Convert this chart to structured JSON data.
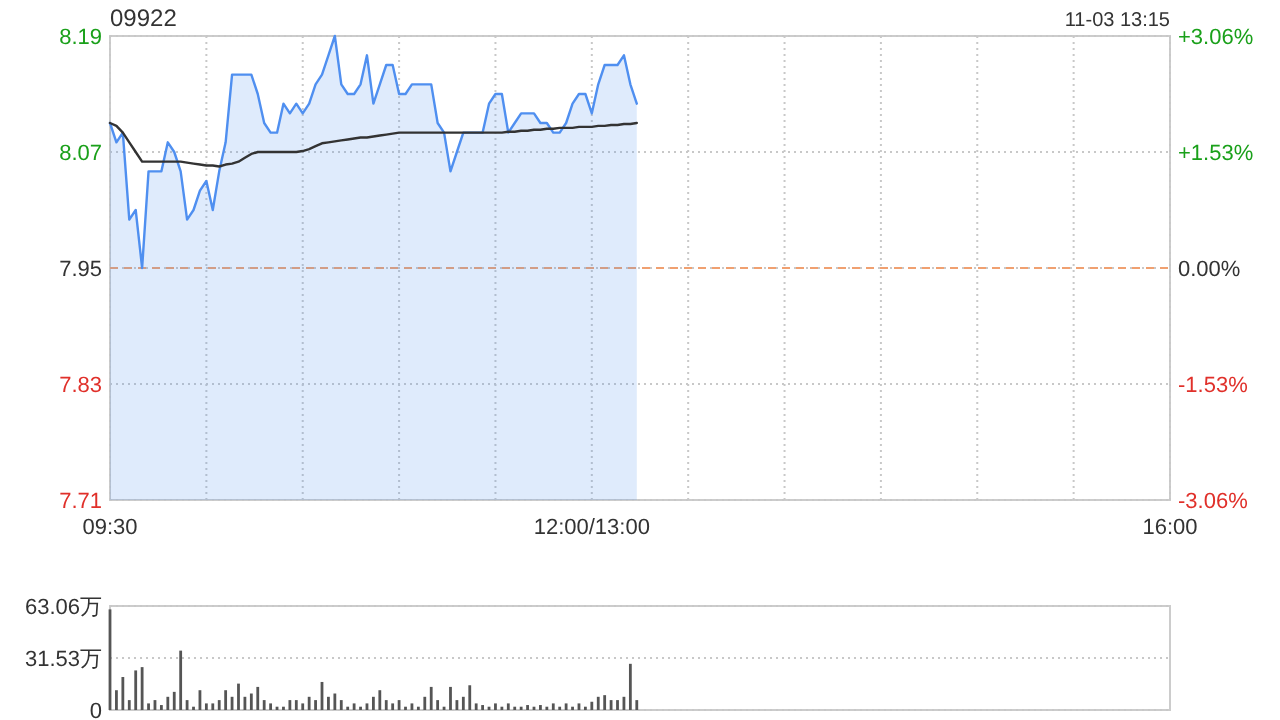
{
  "chart_data": [
    {
      "type": "line",
      "title": "09922",
      "annotations": [
        "11-03 13:15"
      ],
      "categories": [
        "09:30",
        null,
        null,
        null,
        null,
        null,
        null,
        null,
        null,
        null,
        null,
        null,
        null,
        null,
        null,
        null,
        null,
        null,
        null,
        null,
        null,
        null,
        null,
        null,
        null,
        null,
        null,
        null,
        null,
        null,
        null,
        null,
        null,
        null,
        null,
        null,
        null,
        null,
        null,
        null,
        null,
        null,
        null,
        null,
        null,
        null,
        null,
        null,
        null,
        null,
        null,
        null,
        null,
        null,
        null,
        null,
        null,
        null,
        null,
        null,
        null,
        null,
        null,
        null,
        null,
        null,
        null,
        null,
        null,
        null,
        null,
        null,
        null,
        null,
        null,
        "12:00/13:00",
        null,
        null,
        null,
        null,
        null,
        null,
        null,
        null,
        null,
        null,
        null,
        null,
        null,
        null,
        null,
        null,
        null,
        null,
        null,
        null,
        null,
        null,
        null,
        null,
        null,
        null,
        null,
        null,
        null,
        null,
        null,
        null,
        null,
        null,
        null,
        null,
        null,
        null,
        null,
        null,
        null,
        null,
        null,
        null,
        null,
        null,
        null,
        null,
        null,
        null,
        null,
        null,
        null,
        null,
        null,
        null,
        null,
        null,
        null,
        null,
        null,
        null,
        null,
        null,
        null,
        null,
        null,
        null,
        null,
        null,
        null,
        null,
        null,
        null,
        null,
        null,
        null,
        null,
        null,
        null,
        null,
        null,
        null,
        null,
        null,
        null,
        null,
        null,
        null,
        "16:00"
      ],
      "ylim": [
        7.71,
        8.19
      ],
      "yticks": [
        7.71,
        7.83,
        7.95,
        8.07,
        8.19
      ],
      "y2lim": [
        -3.06,
        3.06
      ],
      "y2ticks": [
        {
          "value": -3.06,
          "label": "-3.06%"
        },
        {
          "value": -1.53,
          "label": "-1.53%"
        },
        {
          "value": 0,
          "label": "0.00%"
        },
        {
          "value": 1.53,
          "label": "+1.53%"
        },
        {
          "value": 3.06,
          "label": "+3.06%"
        }
      ],
      "grid": true,
      "ref_lines": [
        {
          "axis": "y",
          "value": 7.95,
          "label": null,
          "color": "#f0a070",
          "line_style": "dashed"
        }
      ],
      "series": [
        {
          "type": "area",
          "color": "#4f8ff0",
          "values": [
            8.1,
            8.08,
            8.09,
            8.0,
            8.01,
            7.95,
            8.05,
            8.05,
            8.05,
            8.08,
            8.07,
            8.05,
            8.0,
            8.01,
            8.03,
            8.04,
            8.01,
            8.05,
            8.08,
            8.15,
            8.15,
            8.15,
            8.15,
            8.13,
            8.1,
            8.09,
            8.09,
            8.12,
            8.11,
            8.12,
            8.11,
            8.12,
            8.14,
            8.15,
            8.17,
            8.19,
            8.14,
            8.13,
            8.13,
            8.14,
            8.17,
            8.12,
            8.14,
            8.16,
            8.16,
            8.13,
            8.13,
            8.14,
            8.14,
            8.14,
            8.14,
            8.1,
            8.09,
            8.05,
            8.07,
            8.09,
            8.09,
            8.09,
            8.09,
            8.12,
            8.13,
            8.13,
            8.09,
            8.1,
            8.11,
            8.11,
            8.11,
            8.1,
            8.1,
            8.09,
            8.09,
            8.1,
            8.12,
            8.13,
            8.13,
            8.11,
            8.14,
            8.16,
            8.16,
            8.16,
            8.17,
            8.14,
            8.12,
            null,
            null,
            null,
            null,
            null,
            null,
            null,
            null,
            null,
            null,
            null,
            null,
            null,
            null,
            null,
            null,
            null,
            null,
            null,
            null,
            null,
            null,
            null,
            null,
            null,
            null,
            null,
            null,
            null,
            null,
            null,
            null,
            null,
            null,
            null,
            null,
            null,
            null,
            null,
            null,
            null,
            null,
            null,
            null,
            null,
            null,
            null,
            null,
            null,
            null,
            null,
            null,
            null,
            null,
            null,
            null,
            null,
            null,
            null,
            null,
            null,
            null,
            null,
            null,
            null,
            null,
            null,
            null,
            null,
            null,
            null,
            null,
            null,
            null,
            null,
            null,
            null,
            null,
            null,
            null,
            null,
            null,
            null
          ]
        },
        {
          "type": "line",
          "color": "#333333",
          "values": [
            8.1,
            8.097,
            8.09,
            8.08,
            8.07,
            8.06,
            8.06,
            8.06,
            8.06,
            8.06,
            8.06,
            8.06,
            8.059,
            8.058,
            8.057,
            8.056,
            8.056,
            8.055,
            8.057,
            8.058,
            8.06,
            8.064,
            8.068,
            8.07,
            8.07,
            8.07,
            8.07,
            8.07,
            8.07,
            8.07,
            8.071,
            8.073,
            8.076,
            8.079,
            8.08,
            8.081,
            8.082,
            8.083,
            8.084,
            8.085,
            8.085,
            8.086,
            8.087,
            8.088,
            8.089,
            8.09,
            8.09,
            8.09,
            8.09,
            8.09,
            8.09,
            8.09,
            8.09,
            8.09,
            8.09,
            8.09,
            8.09,
            8.09,
            8.09,
            8.09,
            8.09,
            8.09,
            8.091,
            8.091,
            8.092,
            8.092,
            8.093,
            8.093,
            8.094,
            8.094,
            8.095,
            8.095,
            8.095,
            8.096,
            8.096,
            8.096,
            8.097,
            8.097,
            8.098,
            8.098,
            8.099,
            8.099,
            8.1,
            null,
            null,
            null,
            null,
            null,
            null,
            null,
            null,
            null,
            null,
            null,
            null,
            null,
            null,
            null,
            null,
            null,
            null,
            null,
            null,
            null,
            null,
            null,
            null,
            null,
            null,
            null,
            null,
            null,
            null,
            null,
            null,
            null,
            null,
            null,
            null,
            null,
            null,
            null,
            null,
            null,
            null,
            null,
            null,
            null,
            null,
            null,
            null,
            null,
            null,
            null,
            null,
            null,
            null,
            null,
            null,
            null,
            null,
            null,
            null,
            null,
            null,
            null,
            null,
            null,
            null,
            null,
            null,
            null,
            null,
            null,
            null,
            null,
            null,
            null,
            null,
            null,
            null,
            null,
            null,
            null,
            null,
            null
          ]
        }
      ]
    },
    {
      "type": "bar",
      "tick_labels": "y",
      "grid": "y",
      "color": "#555555",
      "categories": [
        null,
        null,
        null,
        null,
        null,
        null,
        null,
        null,
        null,
        null,
        null,
        null,
        null,
        null,
        null,
        null,
        null,
        null,
        null,
        null,
        null,
        null,
        null,
        null,
        null,
        null,
        null,
        null,
        null,
        null,
        null,
        null,
        null,
        null,
        null,
        null,
        null,
        null,
        null,
        null,
        null,
        null,
        null,
        null,
        null,
        null,
        null,
        null,
        null,
        null,
        null,
        null,
        null,
        null,
        null,
        null,
        null,
        null,
        null,
        null,
        null,
        null,
        null,
        null,
        null,
        null,
        null,
        null,
        null,
        null,
        null,
        null,
        null,
        null,
        null,
        null,
        null,
        null,
        null,
        null,
        null,
        null,
        null,
        null,
        null,
        null,
        null,
        null,
        null,
        null,
        null,
        null,
        null,
        null,
        null,
        null,
        null,
        null,
        null,
        null,
        null,
        null,
        null,
        null,
        null,
        null,
        null,
        null,
        null,
        null,
        null,
        null,
        null,
        null,
        null,
        null,
        null,
        null,
        null,
        null,
        null,
        null,
        null,
        null,
        null,
        null,
        null,
        null,
        null,
        null,
        null,
        null,
        null,
        null,
        null,
        null,
        null,
        null,
        null,
        null,
        null,
        null,
        null,
        null,
        null,
        null,
        null,
        null,
        null,
        null,
        null,
        null,
        null,
        null,
        null,
        null,
        null,
        null,
        null,
        null,
        null,
        null,
        null,
        null,
        null,
        null
      ],
      "ylim": [
        0,
        63.06
      ],
      "yticks": [
        0,
        {
          "value": 31.53,
          "label": "31.53万"
        },
        {
          "value": 63.06,
          "label": "63.06万"
        }
      ],
      "values": [
        61,
        12,
        20,
        6,
        24,
        26,
        4,
        6,
        3,
        8,
        11,
        36,
        6,
        2,
        12,
        4,
        4,
        6,
        12,
        8,
        16,
        8,
        10,
        14,
        6,
        4,
        2,
        2,
        6,
        6,
        4,
        8,
        6,
        17,
        8,
        10,
        6,
        2,
        4,
        2,
        4,
        8,
        12,
        6,
        4,
        6,
        2,
        4,
        2,
        8,
        14,
        6,
        2,
        14,
        6,
        8,
        15,
        4,
        3,
        2,
        4,
        2,
        4,
        2,
        2,
        3,
        2,
        3,
        2,
        4,
        2,
        4,
        2,
        4,
        2,
        5,
        8,
        9,
        6,
        6,
        8,
        28,
        6,
        null,
        null,
        null,
        null,
        null,
        null,
        null,
        null,
        null,
        null,
        null,
        null,
        null,
        null,
        null,
        null,
        null,
        null,
        null,
        null,
        null,
        null,
        null,
        null,
        null,
        null,
        null,
        null,
        null,
        null,
        null,
        null,
        null,
        null,
        null,
        null,
        null,
        null,
        null,
        null,
        null,
        null,
        null,
        null,
        null,
        null,
        null,
        null,
        null,
        null,
        null,
        null,
        null,
        null,
        null,
        null,
        null,
        null,
        null,
        null,
        null,
        null,
        null,
        null,
        null,
        null,
        null,
        null,
        null,
        null,
        null,
        null,
        null,
        null,
        null,
        null,
        null,
        null,
        null,
        null,
        null,
        null,
        null
      ]
    }
  ]
}
